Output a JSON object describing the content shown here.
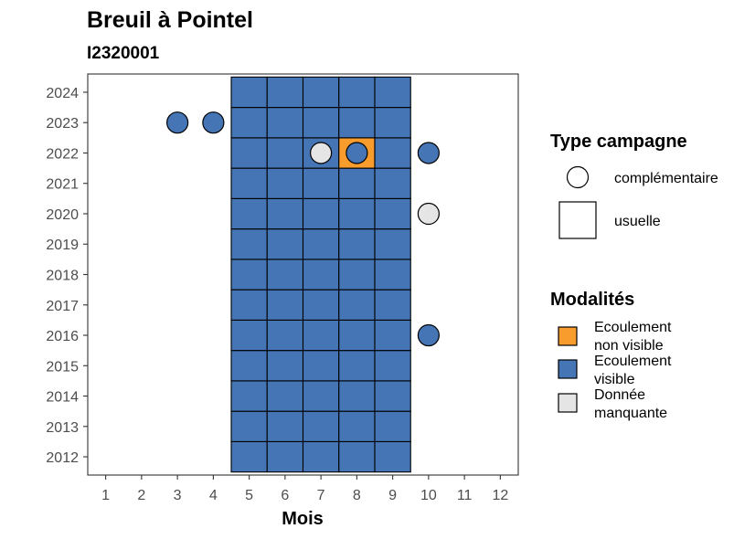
{
  "chart_data": {
    "type": "heatmap",
    "title": "Breuil à Pointel",
    "subtitle": "I2320001",
    "xlabel": "Mois",
    "ylabel": "",
    "x_ticks": [
      1,
      2,
      3,
      4,
      5,
      6,
      7,
      8,
      9,
      10,
      11,
      12
    ],
    "y_ticks": [
      2012,
      2013,
      2014,
      2015,
      2016,
      2017,
      2018,
      2019,
      2020,
      2021,
      2022,
      2023,
      2024
    ],
    "xlim": [
      0.5,
      12.5
    ],
    "ylim": [
      2011.4,
      2024.6
    ],
    "grid": false,
    "legend_position": "right",
    "colors": {
      "Ecoulement non visible": "#F89C2E",
      "Ecoulement visible": "#4575B4",
      "Donnée manquante": "#E5E5E5"
    },
    "legends": {
      "type_campagne": {
        "title": "Type campagne",
        "items": [
          {
            "label": "complémentaire",
            "shape": "circle"
          },
          {
            "label": "usuelle",
            "shape": "square"
          }
        ]
      },
      "modalites": {
        "title": "Modalités",
        "items": [
          {
            "lines": [
              "Ecoulement",
              "non visible"
            ],
            "category": "Ecoulement non visible"
          },
          {
            "lines": [
              "Ecoulement",
              "visible"
            ],
            "category": "Ecoulement visible"
          },
          {
            "lines": [
              "Donnée",
              "manquante"
            ],
            "category": "Donnée manquante"
          }
        ]
      }
    },
    "usuelle": {
      "months": [
        5,
        6,
        7,
        8,
        9
      ],
      "years": [
        2012,
        2013,
        2014,
        2015,
        2016,
        2017,
        2018,
        2019,
        2020,
        2021,
        2022,
        2023,
        2024
      ],
      "default": "Ecoulement visible",
      "exceptions": [
        {
          "month": 8,
          "year": 2022,
          "value": "Ecoulement non visible"
        }
      ]
    },
    "complementaire": [
      {
        "month": 3,
        "year": 2023,
        "value": "Ecoulement visible"
      },
      {
        "month": 4,
        "year": 2023,
        "value": "Ecoulement visible"
      },
      {
        "month": 7,
        "year": 2022,
        "value": "Donnée manquante"
      },
      {
        "month": 8,
        "year": 2022,
        "value": "Ecoulement visible"
      },
      {
        "month": 10,
        "year": 2022,
        "value": "Ecoulement visible"
      },
      {
        "month": 10,
        "year": 2020,
        "value": "Donnée manquante"
      },
      {
        "month": 10,
        "year": 2016,
        "value": "Ecoulement visible"
      }
    ]
  }
}
